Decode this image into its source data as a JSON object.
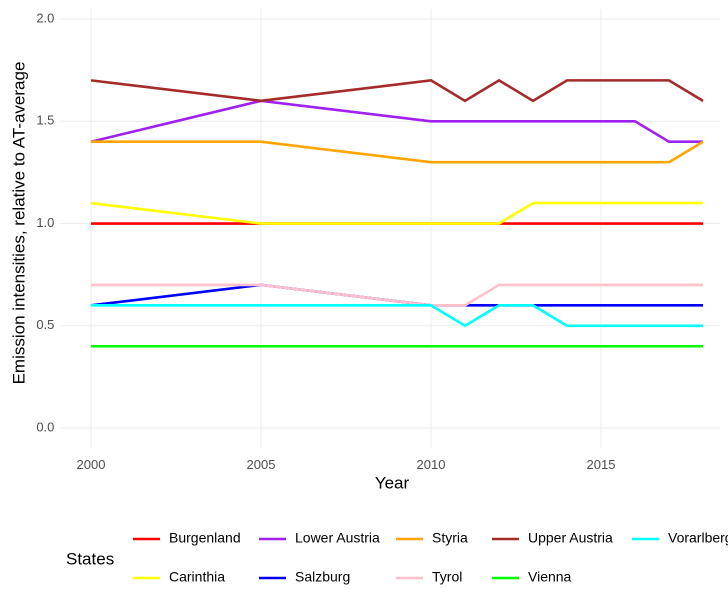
{
  "chart_data": {
    "type": "line",
    "x_label": "Year",
    "y_label": "Emission intensities, relative to AT-average",
    "legend_title": "States",
    "legend_position": "bottom",
    "grid": true,
    "x": [
      2000,
      2005,
      2010,
      2011,
      2012,
      2013,
      2014,
      2015,
      2016,
      2017,
      2018
    ],
    "xlim": [
      1999.1,
      2018.5
    ],
    "ylim": [
      -0.1,
      2.05
    ],
    "xticks": [
      2000,
      2005,
      2010,
      2015
    ],
    "yticks": [
      {
        "value": 0,
        "label": "0.0"
      },
      {
        "value": 0.5,
        "label": "0.5"
      },
      {
        "value": 1,
        "label": "1.0"
      },
      {
        "value": 1.5,
        "label": "1.5"
      },
      {
        "value": 2,
        "label": "2.0"
      }
    ],
    "series": [
      {
        "name": "Burgenland",
        "color": "#ff0000",
        "values": [
          1.0,
          1.0,
          1.0,
          1.0,
          1.0,
          1.0,
          1.0,
          1.0,
          1.0,
          1.0,
          1.0
        ]
      },
      {
        "name": "Carinthia",
        "color": "#ffff00",
        "values": [
          1.1,
          1.0,
          1.0,
          1.0,
          1.0,
          1.1,
          1.1,
          1.1,
          1.1,
          1.1,
          1.1
        ]
      },
      {
        "name": "Lower Austria",
        "color": "#a020f0",
        "values": [
          1.4,
          1.6,
          1.5,
          1.5,
          1.5,
          1.5,
          1.5,
          1.5,
          1.5,
          1.4,
          1.4
        ]
      },
      {
        "name": "Salzburg",
        "color": "#0000ff",
        "values": [
          0.6,
          0.7,
          0.6,
          0.6,
          0.6,
          0.6,
          0.6,
          0.6,
          0.6,
          0.6,
          0.6
        ]
      },
      {
        "name": "Styria",
        "color": "#ffa500",
        "values": [
          1.4,
          1.4,
          1.3,
          1.3,
          1.3,
          1.3,
          1.3,
          1.3,
          1.3,
          1.3,
          1.4
        ]
      },
      {
        "name": "Tyrol",
        "color": "#ffc0cb",
        "values": [
          0.7,
          0.7,
          0.6,
          0.6,
          0.7,
          0.7,
          0.7,
          0.7,
          0.7,
          0.7,
          0.7
        ]
      },
      {
        "name": "Upper Austria",
        "color": "#a52a2a",
        "values": [
          1.7,
          1.6,
          1.7,
          1.6,
          1.7,
          1.6,
          1.7,
          1.7,
          1.7,
          1.7,
          1.6
        ]
      },
      {
        "name": "Vienna",
        "color": "#00ff00",
        "values": [
          0.4,
          0.4,
          0.4,
          0.4,
          0.4,
          0.4,
          0.4,
          0.4,
          0.4,
          0.4,
          0.4
        ]
      },
      {
        "name": "Vorarlberg",
        "color": "#00ffff",
        "values": [
          0.6,
          0.6,
          0.6,
          0.5,
          0.6,
          0.6,
          0.5,
          0.5,
          0.5,
          0.5,
          0.5
        ]
      }
    ]
  }
}
